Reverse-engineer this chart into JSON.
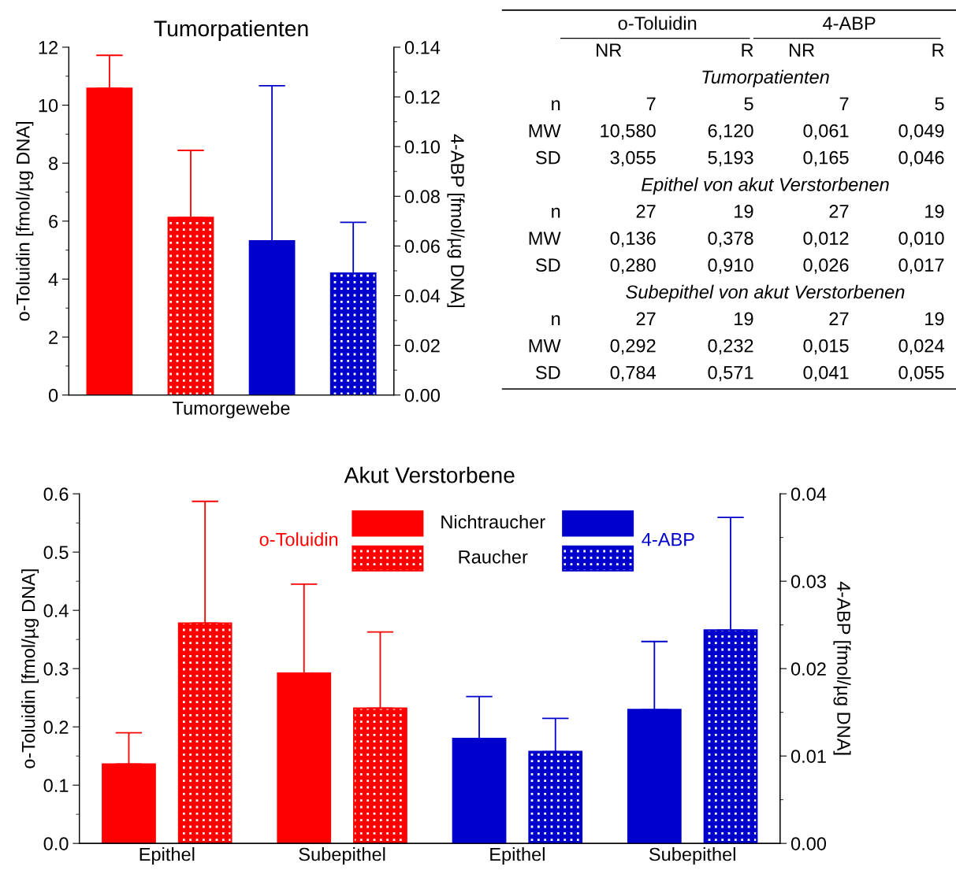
{
  "chart_data": [
    {
      "type": "bar",
      "title": "Tumorpatienten",
      "categories": [
        null,
        null,
        null,
        null
      ],
      "xlabel": "Tumorgewebe",
      "ylabel": "o-Toluidin [fmol/µg DNA]",
      "y2label": "4-ABP [fmol/µg DNA]",
      "series": [
        {
          "color": "#ff0000",
          "values": [
            10.58,
            null,
            null,
            null
          ],
          "errors": [
            [
              10.58,
              11.72
            ],
            null,
            null,
            null
          ]
        },
        {
          "color": "#ff0000",
          "values": [
            null,
            6.12,
            null,
            null
          ],
          "errors": [
            null,
            [
              6.12,
              8.44
            ],
            null,
            null
          ]
        },
        {
          "color": "#0000cc",
          "axis": "y2",
          "values": [
            null,
            null,
            0.062,
            null
          ],
          "errors": [
            null,
            null,
            [
              0.062,
              0.1245
            ],
            null
          ]
        },
        {
          "color": "#0000cc",
          "axis": "y2",
          "values": [
            null,
            null,
            null,
            0.049
          ],
          "errors": [
            null,
            null,
            null,
            [
              0.049,
              0.0695
            ]
          ]
        }
      ],
      "ylim": [
        0,
        12
      ],
      "yticks": [
        0,
        2,
        4,
        6,
        8,
        10,
        12
      ],
      "y2lim": [
        0,
        0.14
      ],
      "y2ticks": [
        {
          "value": 0,
          "label": "0.00"
        },
        {
          "value": 0.02,
          "label": "0.02"
        },
        {
          "value": 0.04,
          "label": "0.04"
        },
        {
          "value": 0.06,
          "label": "0.06"
        },
        {
          "value": 0.08,
          "label": "0.08"
        },
        {
          "value": 0.1,
          "label": "0.10"
        },
        {
          "value": 0.12,
          "label": "0.12"
        },
        {
          "value": 0.14,
          "label": "0.14"
        }
      ],
      "grid": false
    },
    {
      "type": "other",
      "categories": [
        "NR",
        "R",
        "NR",
        "R"
      ],
      "annotations": [
        "o-Toluidin",
        "4-ABP",
        "Tumorpatienten",
        "Epithel von akut Verstorbenen",
        "Subepithel von akut Verstorbenen"
      ],
      "y_categories": [
        "n",
        "MW",
        "SD",
        "n",
        "MW",
        "SD",
        "n",
        "MW",
        "SD"
      ],
      "cell_labels": [
        [
          "7",
          "5",
          "7",
          "5"
        ],
        [
          "10,580",
          "6,120",
          "0,061",
          "0,049"
        ],
        [
          "3,055",
          "5,193",
          "0,165",
          "0,046"
        ],
        [
          "27",
          "19",
          "27",
          "19"
        ],
        [
          "0,136",
          "0,378",
          "0,012",
          "0,010"
        ],
        [
          "0,280",
          "0,910",
          "0,026",
          "0,017"
        ],
        [
          "27",
          "19",
          "27",
          "19"
        ],
        [
          "0,292",
          "0,232",
          "0,015",
          "0,024"
        ],
        [
          "0,784",
          "0,571",
          "0,041",
          "0,055"
        ]
      ]
    },
    {
      "type": "bar",
      "title": "Akut Verstorbene",
      "categories": [
        "Epithel",
        "Subepithel",
        "Epithel",
        "Subepithel"
      ],
      "ylabel": "o-Toluidin [fmol/µg DNA]",
      "y2label": "4-ABP [fmol/µg DNA]",
      "series": [
        {
          "name": "Nichtraucher",
          "color": "#ff0000",
          "values": [
            0.136,
            0.292,
            null,
            null
          ],
          "errors": [
            [
              0.136,
              0.19
            ],
            [
              0.292,
              0.445
            ],
            null,
            null
          ]
        },
        {
          "name": "Raucher",
          "color": "#ff0000",
          "values": [
            0.378,
            0.232,
            null,
            null
          ],
          "errors": [
            [
              0.378,
              0.587
            ],
            [
              0.232,
              0.363
            ],
            null,
            null
          ]
        },
        {
          "color": "#0000cc",
          "axis": "y2",
          "values": [
            null,
            null,
            0.012,
            0.0153
          ],
          "errors": [
            null,
            null,
            [
              0.012,
              0.0168
            ],
            [
              0.0153,
              0.0231
            ]
          ]
        },
        {
          "color": "#0000cc",
          "axis": "y2",
          "values": [
            null,
            null,
            0.0105,
            0.0244
          ],
          "errors": [
            null,
            null,
            [
              0.0105,
              0.0143
            ],
            [
              0.0244,
              0.0373
            ]
          ]
        }
      ],
      "annotations": [
        "o-Toluidin",
        "4-ABP"
      ],
      "legend": "top",
      "ylim": [
        0,
        0.6
      ],
      "yticks": [
        {
          "value": 0,
          "label": "0.0"
        },
        {
          "value": 0.1,
          "label": "0.1"
        },
        {
          "value": 0.2,
          "label": "0.2"
        },
        {
          "value": 0.3,
          "label": "0.3"
        },
        {
          "value": 0.4,
          "label": "0.4"
        },
        {
          "value": 0.5,
          "label": "0.5"
        },
        {
          "value": 0.6,
          "label": "0.6"
        }
      ],
      "y2lim": [
        0,
        0.04
      ],
      "y2ticks": [
        {
          "value": 0,
          "label": "0.00"
        },
        {
          "value": 0.01,
          "label": "0.01"
        },
        {
          "value": 0.02,
          "label": "0.02"
        },
        {
          "value": 0.03,
          "label": "0.03"
        },
        {
          "value": 0.04,
          "label": "0.04"
        }
      ],
      "grid": false
    }
  ]
}
